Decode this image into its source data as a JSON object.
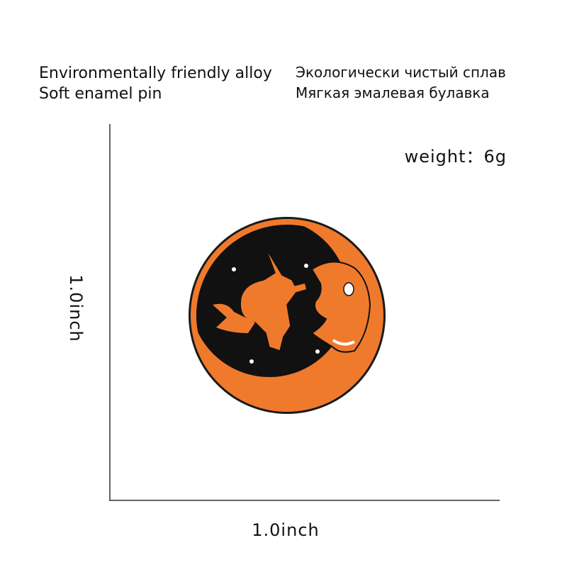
{
  "header": {
    "english": [
      "Environmentally friendly alloy",
      "Soft enamel pin"
    ],
    "russian": [
      "Экологически чистый сплав",
      "Мягкая эмалевая булавка"
    ]
  },
  "weight": "weight：6g",
  "dimensions": {
    "height": "1.0inch",
    "width": "1.0inch"
  }
}
